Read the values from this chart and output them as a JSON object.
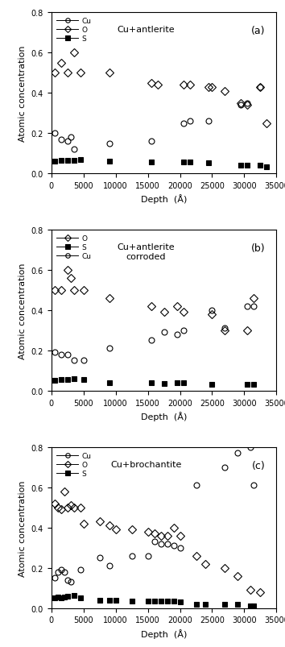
{
  "panel_a": {
    "title": "Cu+antlerite",
    "label": "(a)",
    "Cu": {
      "x": [],
      "y": []
    },
    "O": {
      "x": [
        500,
        1500,
        2500,
        3500,
        4500,
        9000,
        15500,
        16500,
        20500,
        21500,
        24500,
        25000,
        27000,
        29500,
        30500,
        32500,
        33500
      ],
      "y": [
        0.5,
        0.55,
        0.5,
        0.6,
        0.5,
        0.5,
        0.45,
        0.44,
        0.44,
        0.44,
        0.43,
        0.43,
        0.41,
        0.35,
        0.34,
        0.43,
        0.25
      ]
    },
    "Cu_circ": {
      "x": [
        500,
        1500,
        2500,
        3000,
        3500,
        9000,
        15500,
        20500,
        21500,
        24500,
        29500,
        30500,
        32500
      ],
      "y": [
        0.2,
        0.17,
        0.16,
        0.18,
        0.12,
        0.15,
        0.16,
        0.25,
        0.26,
        0.26,
        0.34,
        0.35,
        0.43
      ]
    },
    "S": {
      "x": [
        500,
        1500,
        2500,
        3500,
        4500,
        9000,
        15500,
        20500,
        21500,
        24500,
        29500,
        30500,
        32500,
        33500
      ],
      "y": [
        0.06,
        0.065,
        0.065,
        0.065,
        0.07,
        0.06,
        0.055,
        0.055,
        0.055,
        0.05,
        0.04,
        0.04,
        0.04,
        0.03
      ]
    },
    "legend_order": [
      "Cu",
      "O",
      "S"
    ],
    "xlim": [
      0,
      35000
    ],
    "ylim": [
      0,
      0.8
    ],
    "xticks": [
      0,
      5000,
      10000,
      15000,
      20000,
      25000,
      30000,
      35000
    ],
    "yticks": [
      0.0,
      0.2,
      0.4,
      0.6,
      0.8
    ]
  },
  "panel_b": {
    "title": "Cu+antlerite\ncorroded",
    "label": "(b)",
    "O": {
      "x": [
        500,
        1500,
        2500,
        3000,
        3500,
        5000,
        9000,
        15500,
        17500,
        19500,
        20500,
        25000,
        27000,
        30500,
        31500
      ],
      "y": [
        0.5,
        0.5,
        0.6,
        0.56,
        0.5,
        0.5,
        0.46,
        0.42,
        0.39,
        0.42,
        0.39,
        0.38,
        0.3,
        0.3,
        0.46
      ]
    },
    "Cu_circ": {
      "x": [
        500,
        1500,
        2500,
        3500,
        5000,
        9000,
        15500,
        17500,
        19500,
        20500,
        25000,
        27000,
        30500,
        31500
      ],
      "y": [
        0.19,
        0.18,
        0.18,
        0.15,
        0.15,
        0.21,
        0.25,
        0.29,
        0.28,
        0.3,
        0.4,
        0.31,
        0.42,
        0.42
      ]
    },
    "S": {
      "x": [
        500,
        1500,
        2500,
        3500,
        5000,
        9000,
        15500,
        17500,
        19500,
        20500,
        25000,
        30500,
        31500
      ],
      "y": [
        0.05,
        0.055,
        0.055,
        0.06,
        0.055,
        0.04,
        0.04,
        0.035,
        0.04,
        0.04,
        0.03,
        0.03,
        0.03
      ]
    },
    "legend_order": [
      "O",
      "S",
      "Cu"
    ],
    "xlim": [
      0,
      35000
    ],
    "ylim": [
      0,
      0.8
    ],
    "xticks": [
      0,
      5000,
      10000,
      15000,
      20000,
      25000,
      30000,
      35000
    ],
    "yticks": [
      0.0,
      0.2,
      0.4,
      0.6,
      0.8
    ]
  },
  "panel_c": {
    "title": "Cu+brochantite",
    "label": "(c)",
    "O": {
      "x": [
        500,
        1000,
        1500,
        2000,
        2500,
        3000,
        3500,
        4500,
        5000,
        7500,
        9000,
        10000,
        12500,
        15000,
        16000,
        17000,
        18000,
        19000,
        20000,
        22500,
        24000,
        27000,
        29000,
        31000,
        32500
      ],
      "y": [
        0.52,
        0.5,
        0.49,
        0.58,
        0.5,
        0.51,
        0.5,
        0.5,
        0.42,
        0.43,
        0.41,
        0.39,
        0.39,
        0.38,
        0.37,
        0.36,
        0.36,
        0.4,
        0.36,
        0.26,
        0.22,
        0.2,
        0.16,
        0.09,
        0.08
      ]
    },
    "Cu_circ": {
      "x": [
        500,
        1000,
        1500,
        2000,
        2500,
        3000,
        4500,
        7500,
        9000,
        12500,
        15000,
        16000,
        17000,
        18000,
        19000,
        20000,
        22500,
        27000,
        29000,
        31000,
        31500
      ],
      "y": [
        0.15,
        0.18,
        0.19,
        0.18,
        0.14,
        0.13,
        0.19,
        0.25,
        0.21,
        0.26,
        0.26,
        0.33,
        0.32,
        0.32,
        0.31,
        0.3,
        0.61,
        0.7,
        0.77,
        0.8,
        0.61
      ]
    },
    "S": {
      "x": [
        500,
        1000,
        1500,
        2000,
        2500,
        3500,
        4500,
        7500,
        9000,
        10000,
        12500,
        15000,
        16000,
        17000,
        18000,
        19000,
        20000,
        22500,
        24000,
        27000,
        29000,
        31000,
        31500
      ],
      "y": [
        0.05,
        0.055,
        0.05,
        0.055,
        0.06,
        0.065,
        0.05,
        0.04,
        0.04,
        0.04,
        0.035,
        0.035,
        0.035,
        0.035,
        0.035,
        0.035,
        0.03,
        0.02,
        0.02,
        0.02,
        0.02,
        0.01,
        0.01
      ]
    },
    "legend_order": [
      "Cu",
      "O",
      "S"
    ],
    "xlim": [
      0,
      35000
    ],
    "ylim": [
      0,
      0.8
    ],
    "xticks": [
      0,
      5000,
      10000,
      15000,
      20000,
      25000,
      30000,
      35000
    ],
    "yticks": [
      0.0,
      0.2,
      0.4,
      0.6,
      0.8
    ]
  },
  "xlabel": "Depth  (Å)",
  "ylabel": "Atomic concentration",
  "marker_O": "D",
  "marker_Cu": "o",
  "marker_S": "s",
  "markersize": 5,
  "color": "black"
}
